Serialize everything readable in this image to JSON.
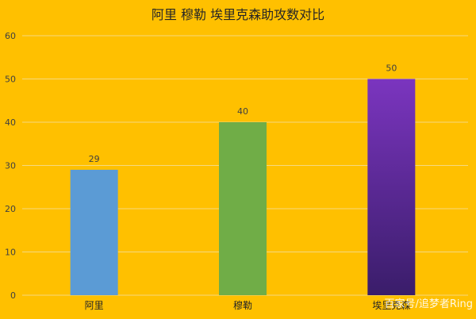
{
  "colors": {
    "background": "#FFC000",
    "gridline": "#F5D980",
    "axis_text": "#404040",
    "title_text": "#262626"
  },
  "chart_data": {
    "type": "bar",
    "title": "阿里  穆勒  埃里克森助攻数对比",
    "categories": [
      "阿里",
      "穆勒",
      "埃里克森"
    ],
    "values": [
      29,
      40,
      50
    ],
    "data_labels": [
      "29",
      "40",
      "50"
    ],
    "ylim": [
      0,
      60
    ],
    "yticks": [
      0,
      10,
      20,
      30,
      40,
      50,
      60
    ],
    "ytick_labels": [
      "0",
      "10",
      "20",
      "30",
      "40",
      "50",
      "60"
    ],
    "grid": true,
    "legend": "none",
    "bar_colors": [
      {
        "type": "solid",
        "color": "#5B9BD5"
      },
      {
        "type": "solid",
        "color": "#70AD47"
      },
      {
        "type": "gradient",
        "top": "#7B35BF",
        "bottom": "#3A1D6A"
      }
    ]
  },
  "watermark": "百家号/追梦者Ring"
}
